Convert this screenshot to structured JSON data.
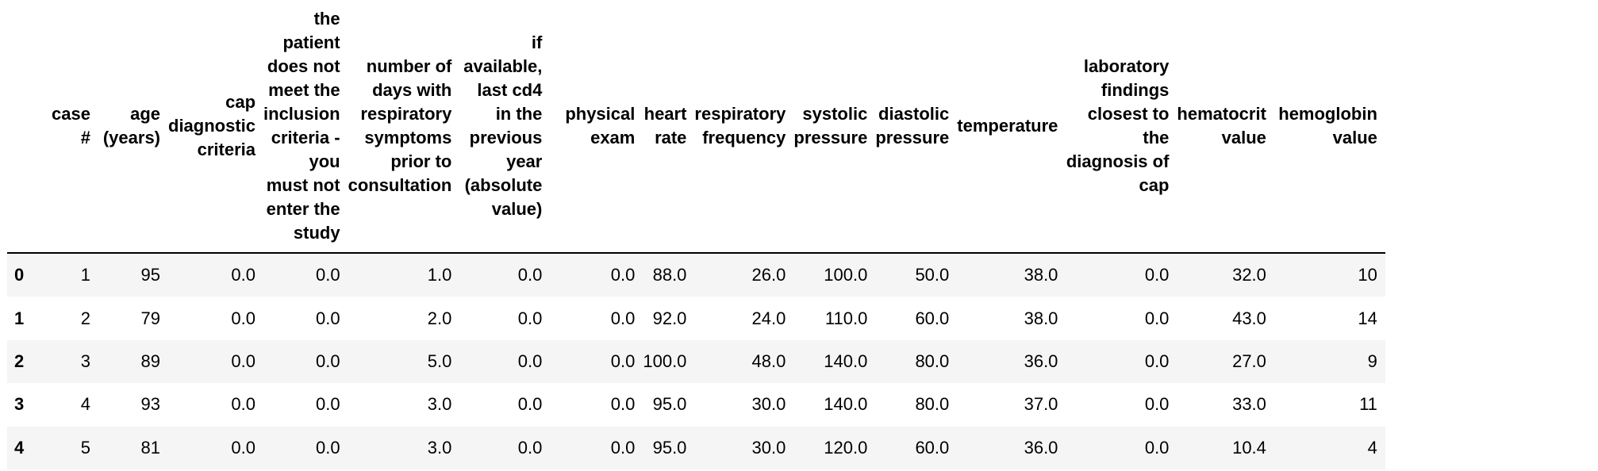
{
  "table": {
    "columns": [
      "case #",
      "age (years)",
      "cap diagnostic criteria",
      "the patient does not meet the inclusion criteria - you must not enter the study",
      "number of days with respiratory symptoms prior to consultation",
      "if available, last cd4 in the previous year (absolute value)",
      "physical exam",
      "heart rate",
      "respiratory frequency",
      "systolic pressure",
      "diastolic pressure",
      "temperature",
      "laboratory findings closest to the diagnosis of cap",
      "hematocrit value",
      "hemoglobin value"
    ],
    "index": [
      "0",
      "1",
      "2",
      "3",
      "4"
    ],
    "rows": [
      [
        "1",
        "95",
        "0.0",
        "0.0",
        "1.0",
        "0.0",
        "0.0",
        "88.0",
        "26.0",
        "100.0",
        "50.0",
        "38.0",
        "0.0",
        "32.0",
        "10"
      ],
      [
        "2",
        "79",
        "0.0",
        "0.0",
        "2.0",
        "0.0",
        "0.0",
        "92.0",
        "24.0",
        "110.0",
        "60.0",
        "38.0",
        "0.0",
        "43.0",
        "14"
      ],
      [
        "3",
        "89",
        "0.0",
        "0.0",
        "5.0",
        "0.0",
        "0.0",
        "100.0",
        "48.0",
        "140.0",
        "80.0",
        "36.0",
        "0.0",
        "27.0",
        "9"
      ],
      [
        "4",
        "93",
        "0.0",
        "0.0",
        "3.0",
        "0.0",
        "0.0",
        "95.0",
        "30.0",
        "140.0",
        "80.0",
        "37.0",
        "0.0",
        "33.0",
        "11"
      ],
      [
        "5",
        "81",
        "0.0",
        "0.0",
        "3.0",
        "0.0",
        "0.0",
        "95.0",
        "30.0",
        "120.0",
        "60.0",
        "36.0",
        "0.0",
        "10.4",
        "4"
      ]
    ]
  }
}
